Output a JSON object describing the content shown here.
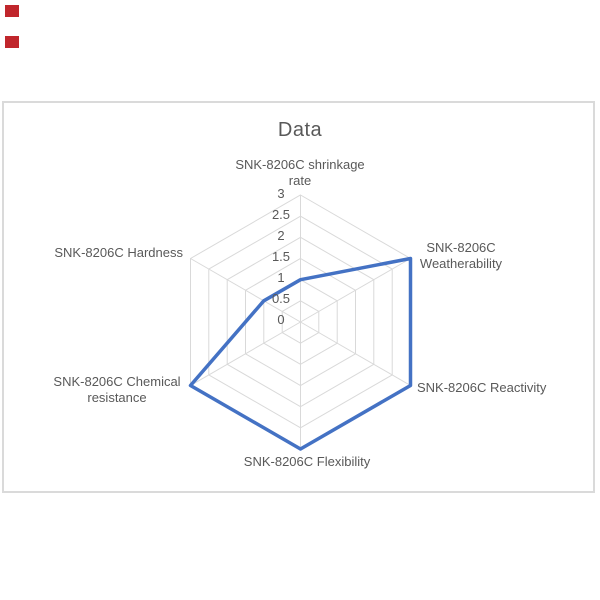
{
  "decorations": {
    "marker_color": "#c0262c"
  },
  "chart_data": {
    "type": "radar",
    "title": "Data",
    "categories": [
      "SNK-8206C shrinkage rate",
      "SNK-8206C Weatherability",
      "SNK-8206C Reactivity",
      "SNK-8206C Flexibility",
      "SNK-8206C Chemical resistance",
      "SNK-8206C Hardness"
    ],
    "series": [
      {
        "name": "Data",
        "values": [
          1,
          3,
          3,
          3,
          3,
          1
        ]
      }
    ],
    "rmin": 0,
    "rmax": 3,
    "rstep": 0.5,
    "grid": true,
    "legend": "none",
    "tick_labels": [
      "3",
      "2.5",
      "2",
      "1.5",
      "1",
      "0.5",
      "0"
    ],
    "axis_labels": [
      {
        "lines": [
          "SNK-8206C shrinkage",
          "rate"
        ]
      },
      {
        "lines": [
          "SNK-8206C",
          "Weatherability"
        ]
      },
      {
        "lines": [
          "SNK-8206C Reactivity"
        ]
      },
      {
        "lines": [
          "SNK-8206C Flexibility"
        ]
      },
      {
        "lines": [
          "SNK-8206C Chemical",
          "resistance"
        ]
      },
      {
        "lines": [
          "SNK-8206C Hardness"
        ]
      }
    ],
    "colors": {
      "series": "#4472c4",
      "grid": "#d9d9d9",
      "text": "#595959",
      "frame_border": "#dadada",
      "background": "#ffffff"
    }
  }
}
